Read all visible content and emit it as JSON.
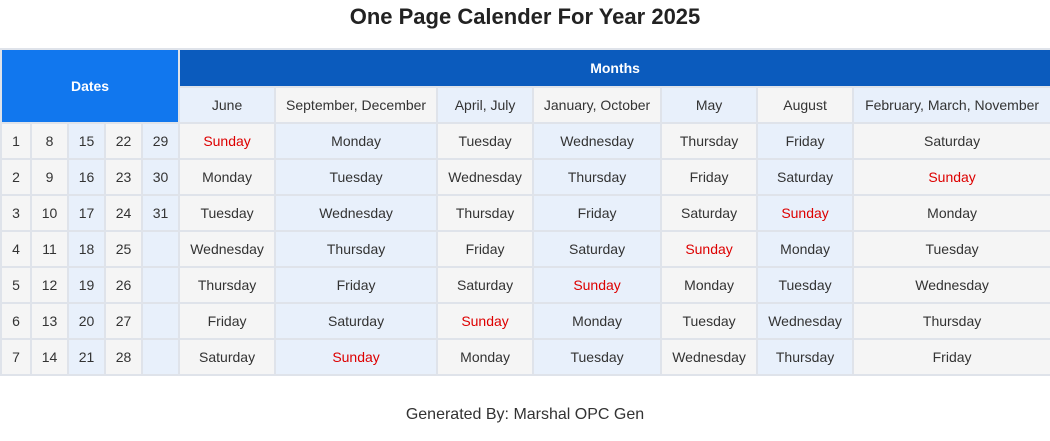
{
  "title": "One Page Calender For Year 2025",
  "headers": {
    "dates": "Dates",
    "months": "Months"
  },
  "month_groups": [
    "June",
    "September, December",
    "April, July",
    "January, October",
    "May",
    "August",
    "February, March, November"
  ],
  "rows": [
    {
      "dates": [
        "1",
        "8",
        "15",
        "22",
        "29"
      ],
      "days": [
        "Sunday",
        "Monday",
        "Tuesday",
        "Wednesday",
        "Thursday",
        "Friday",
        "Saturday"
      ]
    },
    {
      "dates": [
        "2",
        "9",
        "16",
        "23",
        "30"
      ],
      "days": [
        "Monday",
        "Tuesday",
        "Wednesday",
        "Thursday",
        "Friday",
        "Saturday",
        "Sunday"
      ]
    },
    {
      "dates": [
        "3",
        "10",
        "17",
        "24",
        "31"
      ],
      "days": [
        "Tuesday",
        "Wednesday",
        "Thursday",
        "Friday",
        "Saturday",
        "Sunday",
        "Monday"
      ]
    },
    {
      "dates": [
        "4",
        "11",
        "18",
        "25",
        ""
      ],
      "days": [
        "Wednesday",
        "Thursday",
        "Friday",
        "Saturday",
        "Sunday",
        "Monday",
        "Tuesday"
      ]
    },
    {
      "dates": [
        "5",
        "12",
        "19",
        "26",
        ""
      ],
      "days": [
        "Thursday",
        "Friday",
        "Saturday",
        "Sunday",
        "Monday",
        "Tuesday",
        "Wednesday"
      ]
    },
    {
      "dates": [
        "6",
        "13",
        "20",
        "27",
        ""
      ],
      "days": [
        "Friday",
        "Saturday",
        "Sunday",
        "Monday",
        "Tuesday",
        "Wednesday",
        "Thursday"
      ]
    },
    {
      "dates": [
        "7",
        "14",
        "21",
        "28",
        ""
      ],
      "days": [
        "Saturday",
        "Sunday",
        "Monday",
        "Tuesday",
        "Wednesday",
        "Thursday",
        "Friday"
      ]
    }
  ],
  "footer": "Generated By: Marshal OPC Gen",
  "colors": {
    "dates_header": "#1177ee",
    "months_header": "#0b5bbd",
    "sunday": "#dd0000",
    "row_light": "#f5f5f5",
    "row_blue": "#e8f0fb"
  }
}
